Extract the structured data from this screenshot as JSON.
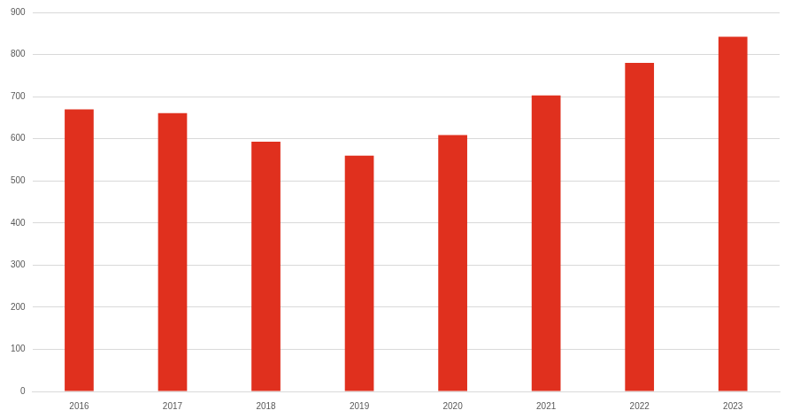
{
  "chart_data": {
    "type": "bar",
    "categories": [
      "2016",
      "2017",
      "2018",
      "2019",
      "2020",
      "2021",
      "2022",
      "2023"
    ],
    "values": [
      670,
      661,
      593,
      560,
      609,
      703,
      780,
      842
    ],
    "color": "#e0301e",
    "ylim": [
      0,
      900
    ],
    "yticks": [
      0,
      100,
      200,
      300,
      400,
      500,
      600,
      700,
      800,
      900
    ],
    "grid": true
  }
}
